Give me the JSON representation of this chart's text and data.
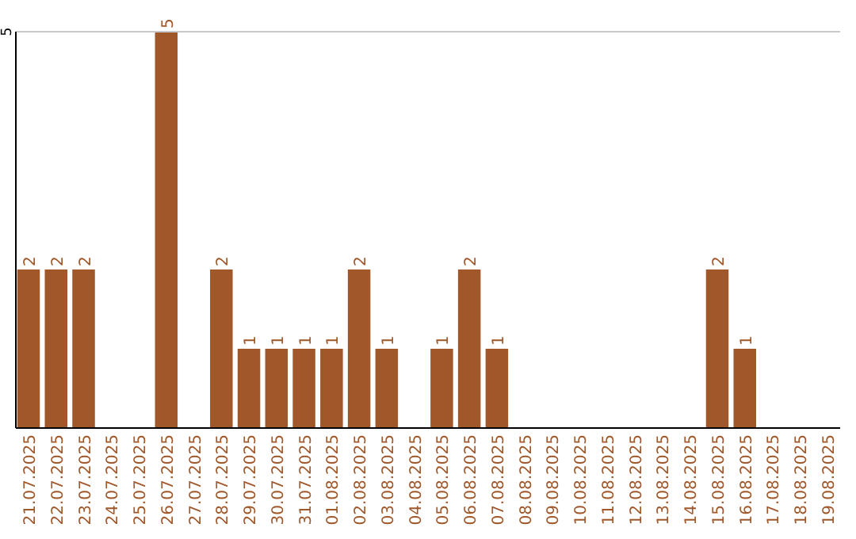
{
  "chart_data": {
    "type": "bar",
    "categories": [
      "21.07.2025",
      "22.07.2025",
      "23.07.2025",
      "24.07.2025",
      "25.07.2025",
      "26.07.2025",
      "27.07.2025",
      "28.07.2025",
      "29.07.2025",
      "30.07.2025",
      "31.07.2025",
      "01.08.2025",
      "02.08.2025",
      "03.08.2025",
      "04.08.2025",
      "05.08.2025",
      "06.08.2025",
      "07.08.2025",
      "08.08.2025",
      "09.08.2025",
      "10.08.2025",
      "11.08.2025",
      "12.08.2025",
      "13.08.2025",
      "14.08.2025",
      "15.08.2025",
      "16.08.2025",
      "17.08.2025",
      "18.08.2025",
      "19.08.2025"
    ],
    "values": [
      2,
      2,
      2,
      0,
      0,
      5,
      0,
      2,
      1,
      1,
      1,
      1,
      2,
      1,
      0,
      1,
      2,
      1,
      0,
      0,
      0,
      0,
      0,
      0,
      0,
      2,
      1,
      0,
      0,
      0
    ],
    "value_labels": [
      "2",
      "2",
      "2",
      null,
      null,
      "5",
      null,
      "2",
      "1",
      "1",
      "1",
      "1",
      "2",
      "1",
      null,
      "1",
      "2",
      "1",
      null,
      null,
      null,
      null,
      null,
      null,
      null,
      "2",
      "1",
      null,
      null,
      null
    ],
    "color": "#a0572a",
    "ylim": [
      0,
      5
    ],
    "yticks": [
      5
    ],
    "ref_lines": [
      {
        "axis": "y",
        "value": 5,
        "color": "#c8c8c8"
      }
    ]
  }
}
